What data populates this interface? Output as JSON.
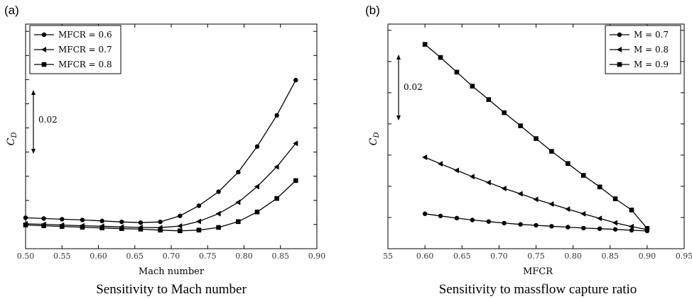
{
  "chart_data": [
    {
      "panel": "(a)",
      "type": "line",
      "caption": "Sensitivity to Mach number",
      "xlabel": "Mach number",
      "ylabel": "C_D",
      "xlim": [
        0.5,
        0.9
      ],
      "ylim": [
        0.0,
        0.093
      ],
      "xticks": [
        "0.50",
        "0.55",
        "0.60",
        "0.65",
        "0.70",
        "0.75",
        "0.80",
        "0.85",
        "0.90"
      ],
      "y_scale_bar": "0.02",
      "x": [
        0.5,
        0.525,
        0.55,
        0.578,
        0.605,
        0.632,
        0.658,
        0.685,
        0.712,
        0.738,
        0.765,
        0.792,
        0.818,
        0.845,
        0.871
      ],
      "series": [
        {
          "name": "MFCR = 0.6",
          "marker": "circle",
          "values": [
            0.0128,
            0.0125,
            0.0122,
            0.0119,
            0.0115,
            0.0111,
            0.0108,
            0.0111,
            0.0136,
            0.0178,
            0.0236,
            0.0317,
            0.0423,
            0.0552,
            0.0698
          ]
        },
        {
          "name": "MFCR = 0.7",
          "marker": "triangle-left",
          "values": [
            0.0103,
            0.0101,
            0.0098,
            0.0095,
            0.0093,
            0.009,
            0.0088,
            0.0087,
            0.0094,
            0.0113,
            0.0145,
            0.0192,
            0.0257,
            0.0339,
            0.0436
          ]
        },
        {
          "name": "MFCR = 0.8",
          "marker": "square",
          "values": [
            0.0098,
            0.0095,
            0.0092,
            0.0089,
            0.0086,
            0.0083,
            0.0081,
            0.0077,
            0.0074,
            0.0077,
            0.0088,
            0.0112,
            0.0152,
            0.0208,
            0.0282
          ]
        }
      ]
    },
    {
      "panel": "(b)",
      "type": "line",
      "caption": "Sensitivity to massflow capture ratio",
      "xlabel": "MFCR",
      "ylabel": "C_D",
      "xlim": [
        0.55,
        0.95
      ],
      "ylim": [
        0.0,
        0.072
      ],
      "xticks": [
        "55",
        "0.60",
        "0.65",
        "0.70",
        "0.75",
        "0.80",
        "0.85",
        "0.90",
        "0.95"
      ],
      "y_scale_bar": "0.02",
      "x": [
        0.6,
        0.621,
        0.643,
        0.664,
        0.686,
        0.707,
        0.729,
        0.75,
        0.771,
        0.793,
        0.814,
        0.836,
        0.857,
        0.879,
        0.9
      ],
      "series": [
        {
          "name": "M = 0.7",
          "marker": "circle",
          "values": [
            0.0112,
            0.0105,
            0.0098,
            0.0092,
            0.0087,
            0.0082,
            0.0078,
            0.0075,
            0.0072,
            0.0069,
            0.0066,
            0.0064,
            0.0062,
            0.0059,
            0.0057
          ]
        },
        {
          "name": "M = 0.8",
          "marker": "triangle-left",
          "values": [
            0.0293,
            0.0272,
            0.0251,
            0.0231,
            0.0212,
            0.0193,
            0.0176,
            0.0158,
            0.0143,
            0.0127,
            0.0112,
            0.0097,
            0.0083,
            0.0071,
            0.0061
          ]
        },
        {
          "name": "M = 0.9",
          "marker": "square",
          "values": [
            0.0655,
            0.0613,
            0.0566,
            0.0521,
            0.0478,
            0.0436,
            0.0394,
            0.0353,
            0.0312,
            0.0273,
            0.0235,
            0.0198,
            0.016,
            0.0124,
            0.0065
          ]
        }
      ]
    }
  ]
}
